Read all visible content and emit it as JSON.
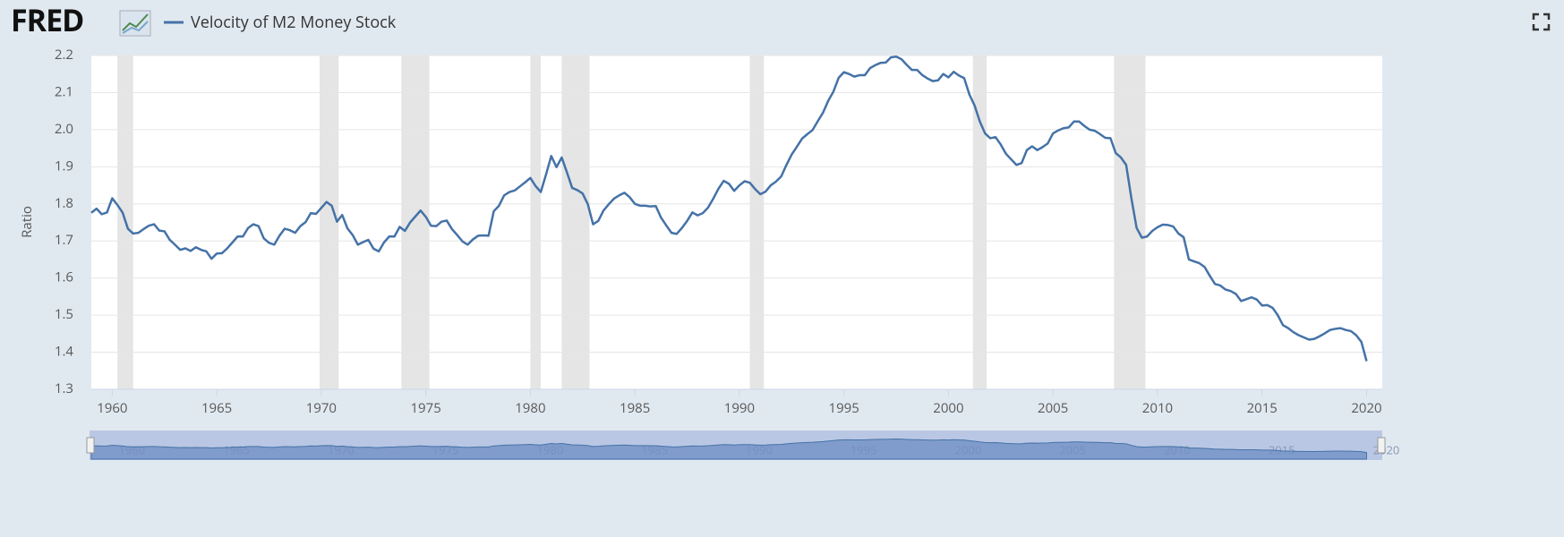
{
  "chart_data": {
    "type": "line",
    "brand": "FRED",
    "title": "Velocity of M2 Money Stock",
    "ylabel": "Ratio",
    "grid": true,
    "color": "#4572a7",
    "xlim": [
      1959,
      2020.75
    ],
    "ylim": [
      1.3,
      2.2
    ],
    "xticks": [
      1960,
      1965,
      1970,
      1975,
      1980,
      1985,
      1990,
      1995,
      2000,
      2005,
      2010,
      2015,
      2020
    ],
    "yticks": [
      1.3,
      1.4,
      1.5,
      1.6,
      1.7,
      1.8,
      1.9,
      {
        "value": 2,
        "label": "2.0"
      },
      2.1,
      2.2
    ],
    "recessions": [
      [
        1960.25,
        1961
      ],
      [
        1969.92,
        1970.83
      ],
      [
        1973.83,
        1975.17
      ],
      [
        1980,
        1980.5
      ],
      [
        1981.5,
        1982.83
      ],
      [
        1990.5,
        1991.17
      ],
      [
        2001.17,
        2001.83
      ],
      [
        2007.92,
        2009.42
      ]
    ],
    "series": [
      {
        "name": "Velocity of M2 Money Stock",
        "color": "#4572a7",
        "x": [
          1959,
          1959.25,
          1959.5,
          1959.75,
          1960,
          1960.25,
          1960.5,
          1960.75,
          1961,
          1961.25,
          1961.5,
          1961.75,
          1962,
          1962.25,
          1962.5,
          1962.75,
          1963,
          1963.25,
          1963.5,
          1963.75,
          1964,
          1964.25,
          1964.5,
          1964.75,
          1965,
          1965.25,
          1965.5,
          1965.75,
          1966,
          1966.25,
          1966.5,
          1966.75,
          1967,
          1967.25,
          1967.5,
          1967.75,
          1968,
          1968.25,
          1968.5,
          1968.75,
          1969,
          1969.25,
          1969.5,
          1969.75,
          1970,
          1970.25,
          1970.5,
          1970.75,
          1971,
          1971.25,
          1971.5,
          1971.75,
          1972,
          1972.25,
          1972.5,
          1972.75,
          1973,
          1973.25,
          1973.5,
          1973.75,
          1974,
          1974.25,
          1974.5,
          1974.75,
          1975,
          1975.25,
          1975.5,
          1975.75,
          1976,
          1976.25,
          1976.5,
          1976.75,
          1977,
          1977.25,
          1977.5,
          1977.75,
          1978,
          1978.25,
          1978.5,
          1978.75,
          1979,
          1979.25,
          1979.5,
          1979.75,
          1980,
          1980.25,
          1980.5,
          1980.75,
          1981,
          1981.25,
          1981.5,
          1981.75,
          1982,
          1982.25,
          1982.5,
          1982.75,
          1983,
          1983.25,
          1983.5,
          1983.75,
          1984,
          1984.25,
          1984.5,
          1984.75,
          1985,
          1985.25,
          1985.5,
          1985.75,
          1986,
          1986.25,
          1986.5,
          1986.75,
          1987,
          1987.25,
          1987.5,
          1987.75,
          1988,
          1988.25,
          1988.5,
          1988.75,
          1989,
          1989.25,
          1989.5,
          1989.75,
          1990,
          1990.25,
          1990.5,
          1990.75,
          1991,
          1991.25,
          1991.5,
          1991.75,
          1992,
          1992.25,
          1992.5,
          1992.75,
          1993,
          1993.25,
          1993.5,
          1993.75,
          1994,
          1994.25,
          1994.5,
          1994.75,
          1995,
          1995.25,
          1995.5,
          1995.75,
          1996,
          1996.25,
          1996.5,
          1996.75,
          1997,
          1997.25,
          1997.5,
          1997.75,
          1998,
          1998.25,
          1998.5,
          1998.75,
          1999,
          1999.25,
          1999.5,
          1999.75,
          2000,
          2000.25,
          2000.5,
          2000.75,
          2001,
          2001.25,
          2001.5,
          2001.75,
          2002,
          2002.25,
          2002.5,
          2002.75,
          2003,
          2003.25,
          2003.5,
          2003.75,
          2004,
          2004.25,
          2004.5,
          2004.75,
          2005,
          2005.25,
          2005.5,
          2005.75,
          2006,
          2006.25,
          2006.5,
          2006.75,
          2007,
          2007.25,
          2007.5,
          2007.75,
          2008,
          2008.25,
          2008.5,
          2008.75,
          2009,
          2009.25,
          2009.5,
          2009.75,
          2010,
          2010.25,
          2010.5,
          2010.75,
          2011,
          2011.25,
          2011.5,
          2011.75,
          2012,
          2012.25,
          2012.5,
          2012.75,
          2013,
          2013.25,
          2013.5,
          2013.75,
          2014,
          2014.25,
          2014.5,
          2014.75,
          2015,
          2015.25,
          2015.5,
          2015.75,
          2016,
          2016.25,
          2016.5,
          2016.75,
          2017,
          2017.25,
          2017.5,
          2017.75,
          2018,
          2018.25,
          2018.5,
          2018.75,
          2019,
          2019.25,
          2019.5,
          2019.75,
          2020
        ],
        "values": [
          1.776,
          1.787,
          1.772,
          1.777,
          1.815,
          1.797,
          1.776,
          1.733,
          1.72,
          1.722,
          1.732,
          1.741,
          1.745,
          1.728,
          1.726,
          1.703,
          1.69,
          1.676,
          1.68,
          1.673,
          1.683,
          1.676,
          1.672,
          1.652,
          1.666,
          1.667,
          1.68,
          1.696,
          1.712,
          1.712,
          1.735,
          1.745,
          1.74,
          1.707,
          1.695,
          1.69,
          1.714,
          1.733,
          1.729,
          1.722,
          1.74,
          1.751,
          1.775,
          1.773,
          1.789,
          1.805,
          1.795,
          1.752,
          1.77,
          1.734,
          1.716,
          1.69,
          1.697,
          1.703,
          1.679,
          1.672,
          1.696,
          1.712,
          1.712,
          1.738,
          1.727,
          1.75,
          1.766,
          1.782,
          1.765,
          1.741,
          1.74,
          1.752,
          1.755,
          1.732,
          1.716,
          1.699,
          1.69,
          1.704,
          1.714,
          1.715,
          1.714,
          1.78,
          1.795,
          1.823,
          1.832,
          1.836,
          1.847,
          1.858,
          1.87,
          1.848,
          1.832,
          1.879,
          1.929,
          1.899,
          1.925,
          1.885,
          1.843,
          1.837,
          1.828,
          1.799,
          1.745,
          1.754,
          1.782,
          1.799,
          1.814,
          1.823,
          1.83,
          1.818,
          1.8,
          1.795,
          1.795,
          1.793,
          1.794,
          1.763,
          1.742,
          1.722,
          1.719,
          1.735,
          1.754,
          1.777,
          1.769,
          1.775,
          1.79,
          1.814,
          1.841,
          1.862,
          1.854,
          1.835,
          1.85,
          1.861,
          1.857,
          1.84,
          1.826,
          1.833,
          1.85,
          1.86,
          1.874,
          1.905,
          1.933,
          1.954,
          1.976,
          1.988,
          1.999,
          2.023,
          2.046,
          2.078,
          2.103,
          2.14,
          2.155,
          2.15,
          2.143,
          2.147,
          2.147,
          2.166,
          2.174,
          2.18,
          2.181,
          2.195,
          2.197,
          2.19,
          2.175,
          2.161,
          2.161,
          2.147,
          2.138,
          2.131,
          2.133,
          2.15,
          2.141,
          2.156,
          2.146,
          2.139,
          2.095,
          2.065,
          2.022,
          1.99,
          1.977,
          1.98,
          1.96,
          1.935,
          1.92,
          1.905,
          1.91,
          1.945,
          1.955,
          1.945,
          1.953,
          1.963,
          1.99,
          1.998,
          2.004,
          2.006,
          2.022,
          2.022,
          2.01,
          2,
          1.997,
          1.988,
          1.978,
          1.977,
          1.937,
          1.925,
          1.905,
          1.815,
          1.735,
          1.709,
          1.712,
          1.727,
          1.737,
          1.744,
          1.743,
          1.739,
          1.72,
          1.71,
          1.65,
          1.645,
          1.64,
          1.63,
          1.606,
          1.584,
          1.58,
          1.569,
          1.565,
          1.557,
          1.538,
          1.543,
          1.548,
          1.542,
          1.526,
          1.527,
          1.52,
          1.5,
          1.473,
          1.465,
          1.454,
          1.446,
          1.44,
          1.434,
          1.436,
          1.443,
          1.451,
          1.46,
          1.463,
          1.465,
          1.46,
          1.457,
          1.446,
          1.428,
          1.376
        ]
      }
    ]
  }
}
